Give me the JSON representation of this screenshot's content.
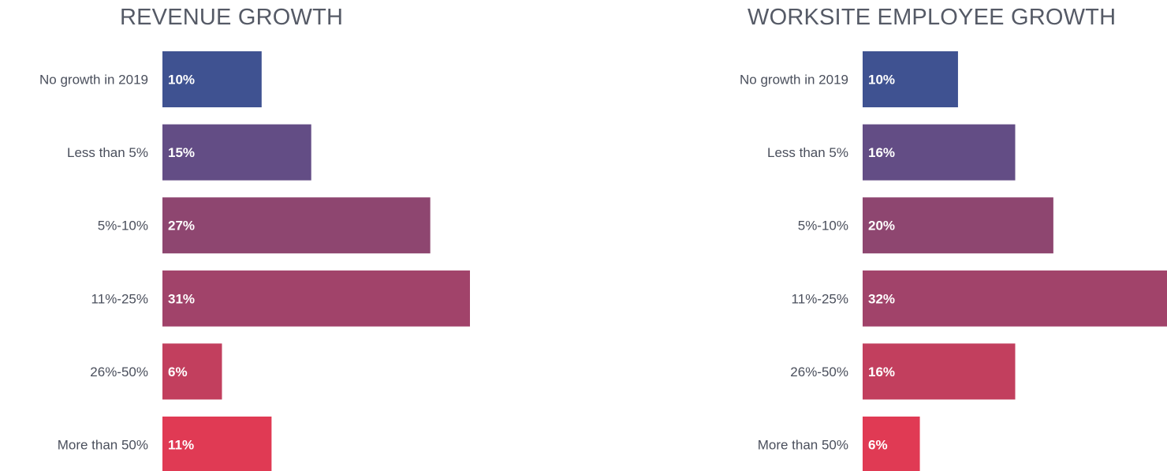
{
  "chart_data": [
    {
      "type": "bar",
      "orientation": "horizontal",
      "title": "REVENUE GROWTH",
      "categories": [
        "No growth in 2019",
        "Less than 5%",
        "5%-10%",
        "11%-25%",
        "26%-50%",
        "More than 50%"
      ],
      "values": [
        10,
        15,
        27,
        31,
        6,
        11
      ],
      "value_labels": [
        "10%",
        "15%",
        "27%",
        "31%",
        "6%",
        "11%"
      ],
      "xlim": [
        0,
        31
      ],
      "colors": [
        "#3f5291",
        "#634d85",
        "#8e4670",
        "#a1436a",
        "#c23f5e",
        "#e03a54"
      ],
      "grid": false,
      "legend": "none"
    },
    {
      "type": "bar",
      "orientation": "horizontal",
      "title": "WORKSITE EMPLOYEE GROWTH",
      "categories": [
        "No growth in 2019",
        "Less than 5%",
        "5%-10%",
        "11%-25%",
        "26%-50%",
        "More than 50%"
      ],
      "values": [
        10,
        16,
        20,
        32,
        16,
        6
      ],
      "value_labels": [
        "10%",
        "16%",
        "20%",
        "32%",
        "16%",
        "6%"
      ],
      "xlim": [
        0,
        32
      ],
      "colors": [
        "#3f5291",
        "#634d85",
        "#8e4670",
        "#a1436a",
        "#c23f5e",
        "#e03a54"
      ],
      "grid": false,
      "legend": "none"
    }
  ]
}
